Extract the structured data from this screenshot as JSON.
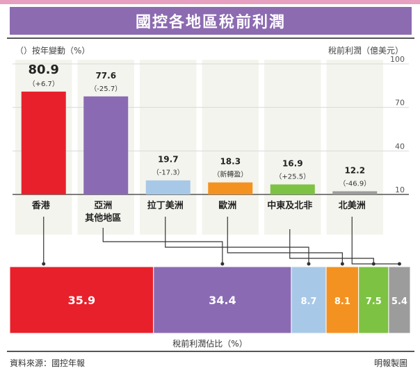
{
  "header": {
    "title": "國控各地區稅前利潤"
  },
  "captions": {
    "left": "（）按年變動（%）",
    "right": "稅前利潤（億美元）",
    "bottom": "稅前利潤佔比（%）",
    "source": "資料來源：國控年報",
    "credit": "明報製圖"
  },
  "chart_data": [
    {
      "type": "bar",
      "categories": [
        "香港",
        "亞洲 其他地區",
        "拉丁美洲",
        "歐洲",
        "中東及北非",
        "北美洲"
      ],
      "values": [
        80.9,
        77.6,
        19.7,
        18.3,
        16.9,
        12.2
      ],
      "changes": [
        "（+6.7）",
        "（-25.7）",
        "（-17.3）",
        "（新轉盈）",
        "（+25.5）",
        "（-46.9）"
      ],
      "colors": [
        "#e8202b",
        "#8a6bb3",
        "#a8c8e8",
        "#f39221",
        "#7dc242",
        "#9c9c9c"
      ],
      "ylim": [
        10,
        100
      ],
      "yticks": [
        "100",
        "70",
        "40",
        "10"
      ]
    },
    {
      "type": "bar",
      "stacked": true,
      "orientation": "horizontal",
      "values": [
        35.9,
        34.4,
        8.7,
        8.1,
        7.5,
        5.4
      ],
      "labels": [
        "35.9",
        "34.4",
        "8.7",
        "8.1",
        "7.5",
        "5.4"
      ],
      "colors": [
        "#e8202b",
        "#8a6bb3",
        "#a8c8e8",
        "#f39221",
        "#7dc242",
        "#9c9c9c"
      ]
    }
  ]
}
